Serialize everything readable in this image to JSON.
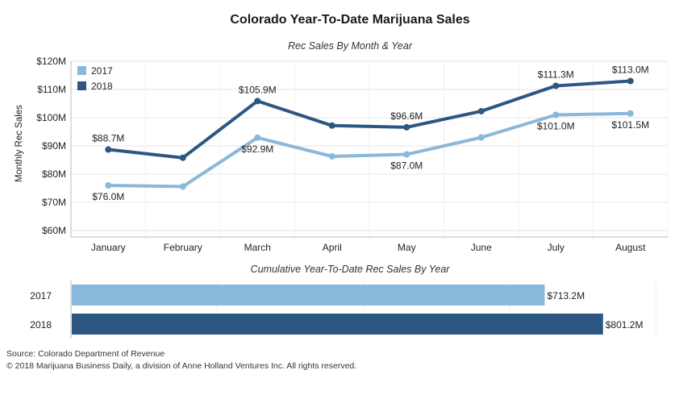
{
  "title": "Colorado Year-To-Date Marijuana Sales",
  "footer": {
    "source": "Source: Colorado Department of Revenue",
    "copyright": "© 2018 Marijuana Business Daily, a division of Anne Holland Ventures Inc. All rights reserved."
  },
  "chart_data": [
    {
      "type": "line",
      "title": "Rec Sales By Month & Year",
      "xlabel": "",
      "ylabel": "Monthly Rec Sales",
      "categories": [
        "January",
        "February",
        "March",
        "April",
        "May",
        "June",
        "July",
        "August"
      ],
      "ylim": [
        60,
        120
      ],
      "yticks": [
        60,
        70,
        80,
        90,
        100,
        110,
        120
      ],
      "ytick_labels": [
        "$60M",
        "$70M",
        "$80M",
        "$90M",
        "$100M",
        "$110M",
        "$120M"
      ],
      "grid": true,
      "legend": "top-left",
      "series": [
        {
          "name": "2017",
          "color": "#8ab8db",
          "values": [
            76.0,
            75.6,
            92.9,
            86.3,
            87.0,
            93.0,
            101.0,
            101.5
          ],
          "labels": [
            "$76.0M",
            "",
            "$92.9M",
            "",
            "$87.0M",
            "",
            "$101.0M",
            "$101.5M"
          ]
        },
        {
          "name": "2018",
          "color": "#2c5783",
          "values": [
            88.7,
            85.8,
            105.9,
            97.2,
            96.6,
            102.3,
            111.3,
            113.0
          ],
          "labels": [
            "$88.7M",
            "",
            "$105.9M",
            "",
            "$96.6M",
            "",
            "$111.3M",
            "$113.0M"
          ]
        }
      ]
    },
    {
      "type": "bar",
      "orientation": "horizontal",
      "title": "Cumulative Year-To-Date Rec Sales By Year",
      "categories": [
        "2017",
        "2018"
      ],
      "values": [
        713.2,
        801.2
      ],
      "labels": [
        "$713.2M",
        "$801.2M"
      ],
      "colors": [
        "#8ab8db",
        "#2c5783"
      ],
      "xlim": [
        0,
        900
      ]
    }
  ]
}
